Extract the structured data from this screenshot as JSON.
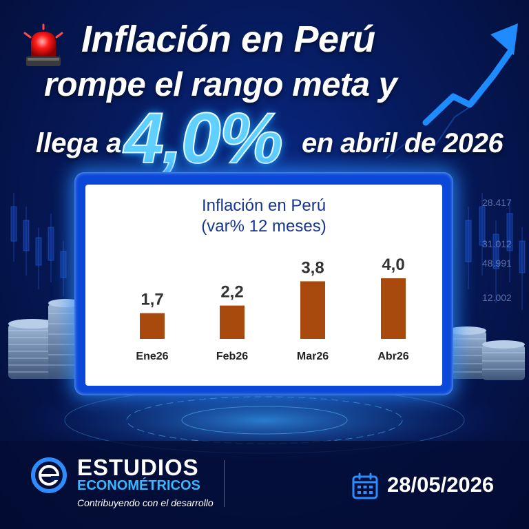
{
  "headline": {
    "line1": "Inflación en Perú",
    "line2": "rompe el rango meta y",
    "line3_prefix": "llega a",
    "highlight": "4,0%",
    "line3_suffix": "en abril de 2026"
  },
  "background_numbers": [
    "28.417",
    "31.012",
    "48.991",
    "12.002"
  ],
  "chart_data": {
    "type": "bar",
    "title_line1": "Inflación en Perú",
    "title_line2": "(var% 12 meses)",
    "categories": [
      "Ene26",
      "Feb26",
      "Mar26",
      "Abr26"
    ],
    "values": [
      1.7,
      2.2,
      3.8,
      4.0
    ],
    "value_labels": [
      "1,7",
      "2,2",
      "3,8",
      "4,0"
    ],
    "ylim": [
      0,
      4.0
    ],
    "bar_color": "#a84a0d",
    "grid": false,
    "legend": "none"
  },
  "brand": {
    "name_line1": "ESTUDIOS",
    "name_line2": "ECONOMÉTRICOS",
    "tagline": "Contribuyendo con el desarrollo",
    "logo_icon": "e-logo-icon"
  },
  "footer": {
    "date": "28/05/2026",
    "date_icon": "calendar-icon"
  },
  "colors": {
    "accent": "#38b6ff",
    "highlight": "#5fd0ff",
    "background": "#061a5c",
    "title_blue": "#16358f"
  }
}
